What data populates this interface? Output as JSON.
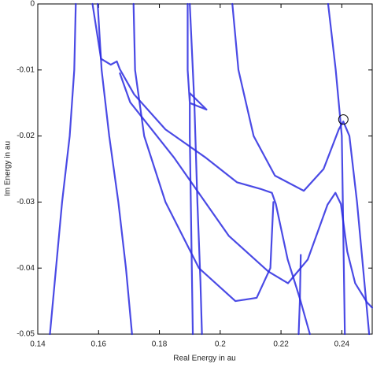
{
  "chart_data": {
    "type": "line",
    "xlabel": "Real Energy in au",
    "ylabel": "Im Energy in au",
    "xlim": [
      0.14,
      0.25
    ],
    "xticks": [
      0.14,
      0.16,
      0.18,
      0.2,
      0.22,
      0.24
    ],
    "ylim": [
      -0.05,
      0
    ],
    "yticks": [
      0,
      -0.01,
      -0.02,
      -0.03,
      -0.04,
      -0.05
    ],
    "grid": false,
    "color": "#2a2ae0",
    "series": [
      {
        "x": [
          0.1525,
          0.152,
          0.1505,
          0.148,
          0.146,
          0.144
        ],
        "values": [
          0,
          -0.01,
          -0.02,
          -0.03,
          -0.04,
          -0.05
        ]
      },
      {
        "x": [
          0.1597,
          0.161,
          0.1635,
          0.1665,
          0.169,
          0.171
        ],
        "values": [
          0,
          -0.01,
          -0.02,
          -0.03,
          -0.04,
          -0.05
        ]
      },
      {
        "x": [
          0.158,
          0.1608,
          0.164,
          0.166,
          0.167,
          0.1717,
          0.182,
          0.195,
          0.2055,
          0.2132,
          0.217,
          0.2183,
          0.2222,
          0.2262,
          0.2295
        ],
        "values": [
          0,
          -0.0083,
          -0.0092,
          -0.0087,
          -0.0099,
          -0.0137,
          -0.019,
          -0.0232,
          -0.027,
          -0.028,
          -0.0286,
          -0.0303,
          -0.0387,
          -0.0446,
          -0.05
        ]
      },
      {
        "x": [
          0.167,
          0.1704,
          0.1847,
          0.2028,
          0.2158,
          0.2223,
          0.2288,
          0.2353,
          0.2379,
          0.2397,
          0.2418,
          0.2444,
          0.2483,
          0.25
        ],
        "values": [
          -0.0105,
          -0.0149,
          -0.0232,
          -0.0351,
          -0.0405,
          -0.0423,
          -0.0387,
          -0.0304,
          -0.0286,
          -0.0303,
          -0.0375,
          -0.0423,
          -0.0452,
          -0.046
        ]
      },
      {
        "x": [
          0.1715,
          0.172,
          0.175,
          0.182,
          0.193,
          0.205,
          0.212,
          0.2165,
          0.2175
        ],
        "values": [
          0,
          -0.01,
          -0.02,
          -0.03,
          -0.04,
          -0.045,
          -0.0445,
          -0.04,
          -0.03
        ]
      },
      {
        "x": [
          0.1893,
          0.1893,
          0.19,
          0.1955,
          0.19,
          0.19,
          0.1905,
          0.191
        ],
        "values": [
          0,
          -0.01,
          -0.015,
          -0.016,
          -0.0135,
          -0.02,
          -0.035,
          -0.05
        ]
      },
      {
        "x": [
          0.19,
          0.1915,
          0.1925,
          0.1935,
          0.194
        ],
        "values": [
          0,
          -0.015,
          -0.03,
          -0.042,
          -0.05
        ]
      },
      {
        "x": [
          0.204,
          0.206,
          0.211,
          0.218,
          0.2275,
          0.234,
          0.239,
          0.2405,
          0.2425,
          0.245,
          0.247,
          0.249
        ],
        "values": [
          0,
          -0.01,
          -0.02,
          -0.026,
          -0.0283,
          -0.025,
          -0.019,
          -0.0178,
          -0.02,
          -0.03,
          -0.04,
          -0.05
        ]
      },
      {
        "x": [
          0.2355,
          0.238,
          0.24,
          0.2405,
          0.241
        ],
        "values": [
          0,
          -0.01,
          -0.02,
          -0.035,
          -0.05
        ]
      },
      {
        "x": [
          0.2265,
          0.2262,
          0.2258
        ],
        "values": [
          -0.038,
          -0.045,
          -0.05
        ]
      }
    ],
    "marker": {
      "x": 0.2405,
      "y": -0.0175
    }
  }
}
